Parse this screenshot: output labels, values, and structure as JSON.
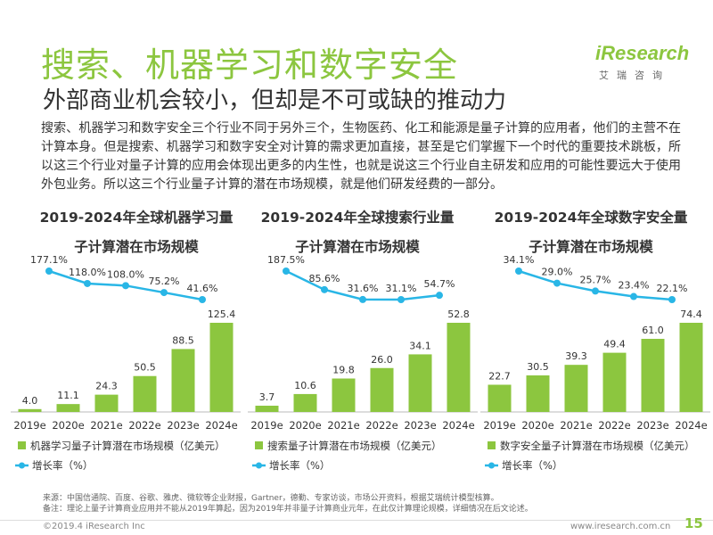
{
  "header": {
    "title": "搜索、机器学习和数字安全",
    "subtitle": "外部商业机会较小，但却是不可或缺的推动力"
  },
  "logo": {
    "brand": "iResearch",
    "sub": "艾瑞咨询"
  },
  "body": {
    "paragraph": "搜索、机器学习和数字安全三个行业不同于另外三个，生物医药、化工和能源是量子计算的应用者，他们的主营不在计算本身。但是搜索、机器学习和数字安全对计算的需求更加直接，甚至是它们掌握下一个时代的重要技术跳板，所以这三个行业对量子计算的应用会体现出更多的内生性，也就是说这三个行业自主研发和应用的可能性要远大于使用外包业务。所以这三个行业量子计算的潜在市场规模，就是他们研发经费的一部分。"
  },
  "colors": {
    "bar": "#8cc63f",
    "line": "#29b6e6",
    "title_green": "#8cc63f"
  },
  "chart_data": [
    {
      "type": "bar",
      "title_line1": "2019-2024年全球机器学习量",
      "title_line2": "子计算潜在市场规模",
      "categories": [
        "2019e",
        "2020e",
        "2021e",
        "2022e",
        "2023e",
        "2024e"
      ],
      "values": [
        4.0,
        11.1,
        24.3,
        50.5,
        88.5,
        125.4
      ],
      "value_labels": [
        "4.0",
        "11.1",
        "24.3",
        "50.5",
        "88.5",
        "125.4"
      ],
      "growth": [
        177.1,
        118.0,
        108.0,
        75.2,
        41.6
      ],
      "growth_labels": [
        "177.1%",
        "118.0%",
        "108.0%",
        "75.2%",
        "41.6%"
      ],
      "bar_legend": "机器学习量子计算潜在市场规模（亿美元）",
      "line_legend": "增长率（%）"
    },
    {
      "type": "bar",
      "title_line1": "2019-2024年全球搜索行业量",
      "title_line2": "子计算潜在市场规模",
      "categories": [
        "2019e",
        "2020e",
        "2021e",
        "2022e",
        "2023e",
        "2024e"
      ],
      "values": [
        3.7,
        10.6,
        19.8,
        26.0,
        34.1,
        52.8
      ],
      "value_labels": [
        "3.7",
        "10.6",
        "19.8",
        "26.0",
        "34.1",
        "52.8"
      ],
      "growth": [
        187.5,
        85.6,
        31.6,
        31.1,
        54.7
      ],
      "growth_labels": [
        "187.5%",
        "85.6%",
        "31.6%",
        "31.1%",
        "54.7%"
      ],
      "bar_legend": "搜索量子计算潜在市场规模（亿美元）",
      "line_legend": "增长率（%）"
    },
    {
      "type": "bar",
      "title_line1": "2019-2024年全球数字安全量",
      "title_line2": "子计算潜在市场规模",
      "categories": [
        "2019e",
        "2020e",
        "2021e",
        "2022e",
        "2023e",
        "2024e"
      ],
      "values": [
        22.7,
        30.5,
        39.3,
        49.4,
        61.0,
        74.4
      ],
      "value_labels": [
        "22.7",
        "30.5",
        "39.3",
        "49.4",
        "61.0",
        "74.4"
      ],
      "growth": [
        34.1,
        29.0,
        25.7,
        23.4,
        22.1
      ],
      "growth_labels": [
        "34.1%",
        "29.0%",
        "25.7%",
        "23.4%",
        "22.1%"
      ],
      "bar_legend": "数字安全量子计算潜在市场规模（亿美元）",
      "line_legend": "增长率（%）"
    }
  ],
  "footer": {
    "source": "来源：中国信通院、百度、谷歌、雅虎、微软等企业财报，Gartner，德勤、专家访谈，市场公开资料，根据艾瑞统计模型核算。",
    "note": "备注：理论上量子计算商业应用并不能从2019年算起，因为2019年并非量子计算商业元年，在此仅计算理论规模，详细情况在后文论述。",
    "copyright": "©2019.4 iResearch Inc",
    "site": "www.iresearch.com.cn",
    "page": "15"
  }
}
